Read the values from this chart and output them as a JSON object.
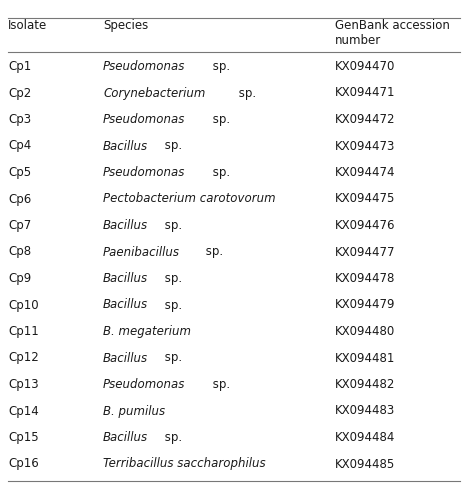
{
  "isolates": [
    "Cp1",
    "Cp2",
    "Cp3",
    "Cp4",
    "Cp5",
    "Cp6",
    "Cp7",
    "Cp8",
    "Cp9",
    "Cp10",
    "Cp11",
    "Cp12",
    "Cp13",
    "Cp14",
    "Cp15",
    "Cp16"
  ],
  "species_italic": [
    "Pseudomonas",
    "Corynebacterium",
    "Pseudomonas",
    "Bacillus",
    "Pseudomonas",
    "Pectobacterium carotovorum",
    "Bacillus",
    "Paenibacillus",
    "Bacillus",
    "Bacillus",
    "B. megaterium",
    "Bacillus",
    "Pseudomonas",
    "B. pumilus",
    "Bacillus",
    "Terribacillus saccharophilus"
  ],
  "species_normal": [
    " sp.",
    " sp.",
    " sp.",
    " sp.",
    " sp.",
    "",
    " sp.",
    " sp.",
    " sp.",
    " sp.",
    "",
    " sp.",
    " sp.",
    "",
    " sp.",
    ""
  ],
  "accessions": [
    "KX094470",
    "KX094471",
    "KX094472",
    "KX094473",
    "KX094474",
    "KX094475",
    "KX094476",
    "KX094477",
    "KX094478",
    "KX094479",
    "KX094480",
    "KX094481",
    "KX094482",
    "KX094483",
    "KX094484",
    "KX094485"
  ],
  "col_headers": [
    "Isolate",
    "Species",
    "GenBank accession\nnumber"
  ],
  "bg_color": "#ffffff",
  "text_color": "#1a1a1a",
  "line_color": "#777777",
  "font_size": 8.5,
  "header_font_size": 8.5,
  "figsize": [
    4.69,
    4.95
  ],
  "dpi": 100
}
